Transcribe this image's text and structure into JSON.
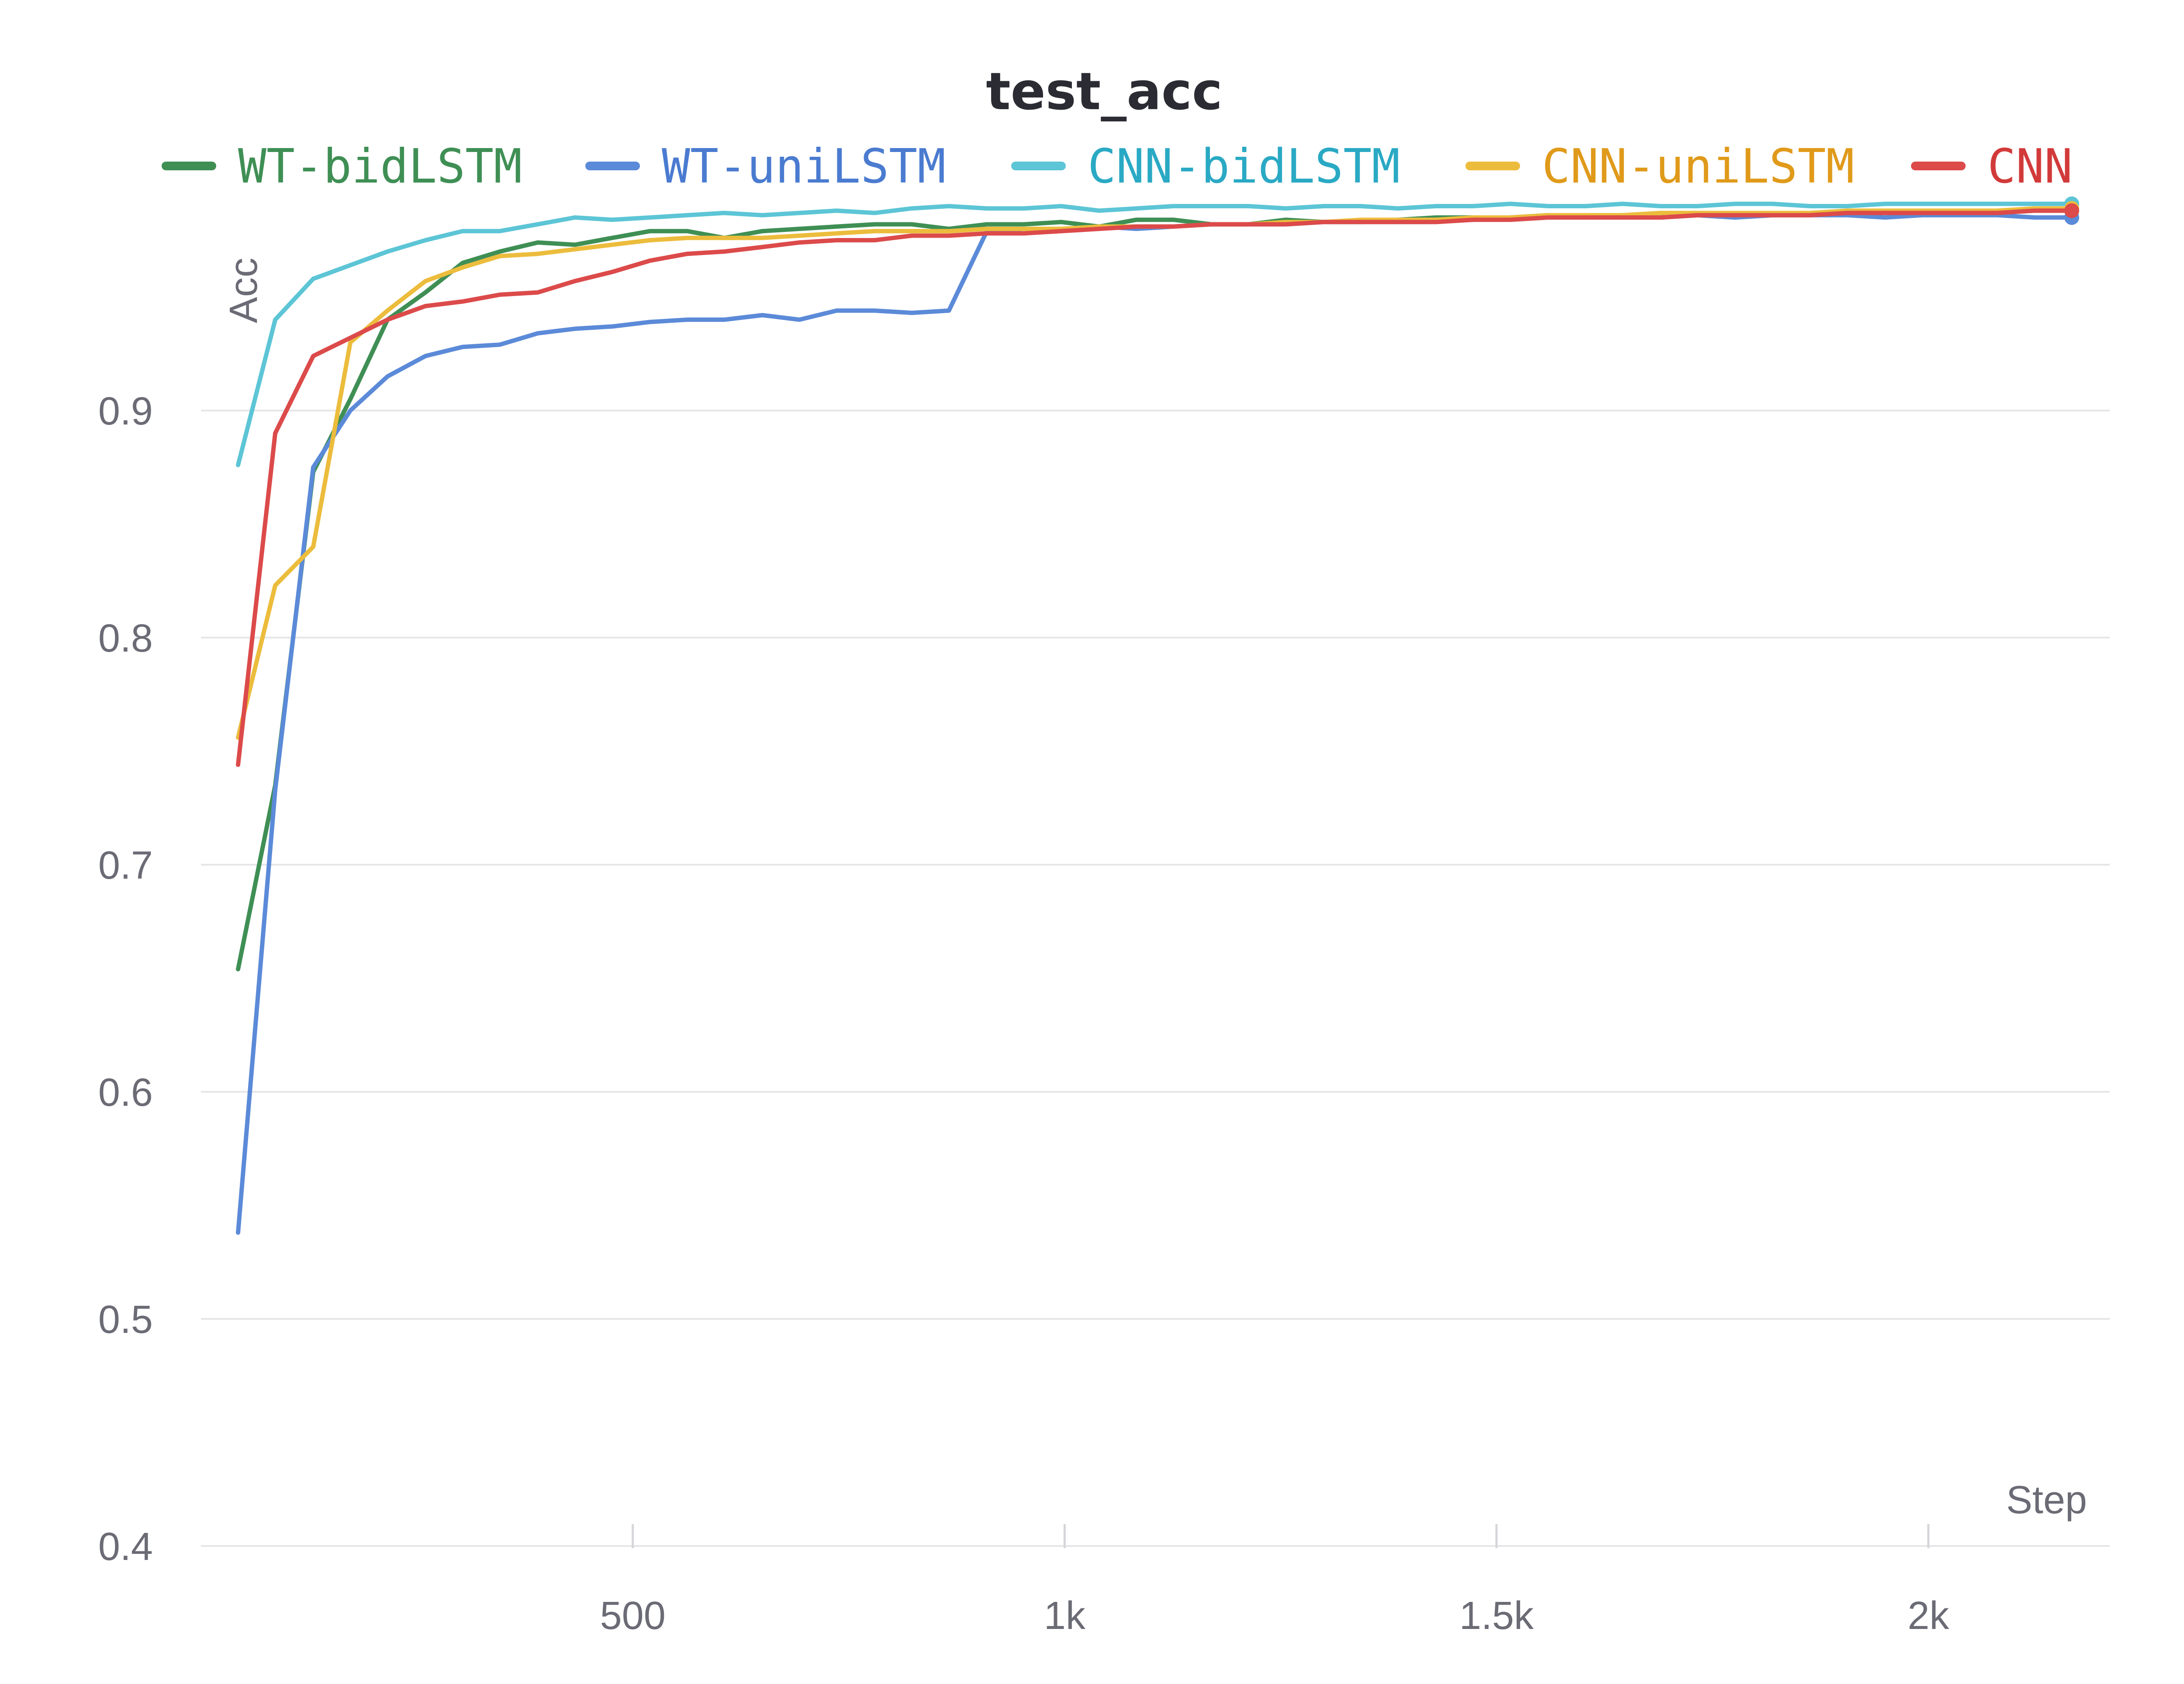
{
  "chart_data": {
    "type": "line",
    "title": "test_acc",
    "xlabel": "Step",
    "ylabel": "Acc",
    "xlim": [
      0,
      2210
    ],
    "ylim": [
      0.4,
      1.0
    ],
    "grid": true,
    "legend_position": "top",
    "yticks": [
      {
        "value": 0.4,
        "label": "0.4"
      },
      {
        "value": 0.5,
        "label": "0.5"
      },
      {
        "value": 0.6,
        "label": "0.6"
      },
      {
        "value": 0.7,
        "label": "0.7"
      },
      {
        "value": 0.8,
        "label": "0.8"
      },
      {
        "value": 0.9,
        "label": "0.9"
      }
    ],
    "xticks": [
      {
        "value": 500,
        "label": "500"
      },
      {
        "value": 1000,
        "label": "1k"
      },
      {
        "value": 1500,
        "label": "1.5k"
      },
      {
        "value": 2000,
        "label": "2k"
      }
    ],
    "series": [
      {
        "name": "WT-bidLSTM",
        "color": "#3f8f55",
        "text_color": "#3f8f55",
        "x": [
          43,
          86,
          130,
          173,
          216,
          260,
          303,
          346,
          390,
          433,
          476,
          520,
          563,
          606,
          650,
          693,
          736,
          780,
          823,
          866,
          910,
          953,
          996,
          1040,
          1083,
          1126,
          1170,
          1213,
          1256,
          1300,
          1343,
          1386,
          1430,
          1473,
          1516,
          1560,
          1603,
          1646,
          1690,
          1733,
          1776,
          1820,
          1863,
          1906,
          1950,
          1993,
          2036,
          2080,
          2123,
          2166
        ],
        "y": [
          0.654,
          0.735,
          0.873,
          0.905,
          0.94,
          0.952,
          0.965,
          0.97,
          0.974,
          0.973,
          0.976,
          0.979,
          0.979,
          0.976,
          0.979,
          0.98,
          0.981,
          0.982,
          0.982,
          0.98,
          0.982,
          0.982,
          0.983,
          0.981,
          0.984,
          0.984,
          0.982,
          0.982,
          0.984,
          0.983,
          0.983,
          0.984,
          0.985,
          0.985,
          0.985,
          0.986,
          0.985,
          0.986,
          0.985,
          0.986,
          0.985,
          0.986,
          0.986,
          0.987,
          0.987,
          0.987,
          0.987,
          0.988,
          0.988,
          0.988
        ]
      },
      {
        "name": "WT-uniLSTM",
        "color": "#5b8ad8",
        "text_color": "#4a7bd0",
        "x": [
          43,
          86,
          130,
          173,
          216,
          260,
          303,
          346,
          390,
          433,
          476,
          520,
          563,
          606,
          650,
          693,
          736,
          780,
          823,
          866,
          910,
          953,
          996,
          1040,
          1083,
          1126,
          1170,
          1213,
          1256,
          1300,
          1343,
          1386,
          1430,
          1473,
          1516,
          1560,
          1603,
          1646,
          1690,
          1733,
          1776,
          1820,
          1863,
          1906,
          1950,
          1993,
          2036,
          2080,
          2123,
          2166
        ],
        "y": [
          0.538,
          0.733,
          0.875,
          0.9,
          0.915,
          0.924,
          0.928,
          0.929,
          0.934,
          0.936,
          0.937,
          0.939,
          0.94,
          0.94,
          0.942,
          0.94,
          0.944,
          0.944,
          0.943,
          0.944,
          0.979,
          0.98,
          0.979,
          0.981,
          0.98,
          0.981,
          0.982,
          0.982,
          0.982,
          0.983,
          0.983,
          0.984,
          0.984,
          0.984,
          0.985,
          0.985,
          0.985,
          0.985,
          0.985,
          0.986,
          0.985,
          0.986,
          0.986,
          0.986,
          0.985,
          0.986,
          0.986,
          0.986,
          0.985,
          0.985
        ]
      },
      {
        "name": "CNN-bidLSTM",
        "color": "#5cc5d6",
        "text_color": "#2aa9c4",
        "x": [
          43,
          86,
          130,
          173,
          216,
          260,
          303,
          346,
          390,
          433,
          476,
          520,
          563,
          606,
          650,
          693,
          736,
          780,
          823,
          866,
          910,
          953,
          996,
          1040,
          1083,
          1126,
          1170,
          1213,
          1256,
          1300,
          1343,
          1386,
          1430,
          1473,
          1516,
          1560,
          1603,
          1646,
          1690,
          1733,
          1776,
          1820,
          1863,
          1906,
          1950,
          1993,
          2036,
          2080,
          2123,
          2166
        ],
        "y": [
          0.876,
          0.94,
          0.958,
          0.964,
          0.97,
          0.975,
          0.979,
          0.979,
          0.982,
          0.985,
          0.984,
          0.985,
          0.986,
          0.987,
          0.986,
          0.987,
          0.988,
          0.987,
          0.989,
          0.99,
          0.989,
          0.989,
          0.99,
          0.988,
          0.989,
          0.99,
          0.99,
          0.99,
          0.989,
          0.99,
          0.99,
          0.989,
          0.99,
          0.99,
          0.991,
          0.99,
          0.99,
          0.991,
          0.99,
          0.99,
          0.991,
          0.991,
          0.99,
          0.99,
          0.991,
          0.991,
          0.991,
          0.991,
          0.991,
          0.991
        ]
      },
      {
        "name": "CNN-uniLSTM",
        "color": "#ecbc3c",
        "text_color": "#e09a1a",
        "x": [
          43,
          86,
          130,
          173,
          216,
          260,
          303,
          346,
          390,
          433,
          476,
          520,
          563,
          606,
          650,
          693,
          736,
          780,
          823,
          866,
          910,
          953,
          996,
          1040,
          1083,
          1126,
          1170,
          1213,
          1256,
          1300,
          1343,
          1386,
          1430,
          1473,
          1516,
          1560,
          1603,
          1646,
          1690,
          1733,
          1776,
          1820,
          1863,
          1906,
          1950,
          1993,
          2036,
          2080,
          2123,
          2166
        ],
        "y": [
          0.756,
          0.823,
          0.84,
          0.93,
          0.944,
          0.957,
          0.963,
          0.968,
          0.969,
          0.971,
          0.973,
          0.975,
          0.976,
          0.976,
          0.976,
          0.977,
          0.978,
          0.979,
          0.979,
          0.979,
          0.98,
          0.98,
          0.98,
          0.981,
          0.981,
          0.981,
          0.982,
          0.982,
          0.983,
          0.983,
          0.984,
          0.984,
          0.984,
          0.985,
          0.985,
          0.986,
          0.986,
          0.986,
          0.987,
          0.987,
          0.987,
          0.987,
          0.987,
          0.988,
          0.988,
          0.988,
          0.988,
          0.988,
          0.989,
          0.989
        ]
      },
      {
        "name": "CNN",
        "color": "#dc4a4a",
        "text_color": "#d23a3a",
        "x": [
          43,
          86,
          130,
          173,
          216,
          260,
          303,
          346,
          390,
          433,
          476,
          520,
          563,
          606,
          650,
          693,
          736,
          780,
          823,
          866,
          910,
          953,
          996,
          1040,
          1083,
          1126,
          1170,
          1213,
          1256,
          1300,
          1343,
          1386,
          1430,
          1473,
          1516,
          1560,
          1603,
          1646,
          1690,
          1733,
          1776,
          1820,
          1863,
          1906,
          1950,
          1993,
          2036,
          2080,
          2123,
          2166
        ],
        "y": [
          0.744,
          0.89,
          0.924,
          0.932,
          0.94,
          0.946,
          0.948,
          0.951,
          0.952,
          0.957,
          0.961,
          0.966,
          0.969,
          0.97,
          0.972,
          0.974,
          0.975,
          0.975,
          0.977,
          0.977,
          0.978,
          0.978,
          0.979,
          0.98,
          0.981,
          0.981,
          0.982,
          0.982,
          0.982,
          0.983,
          0.983,
          0.983,
          0.983,
          0.984,
          0.984,
          0.985,
          0.985,
          0.985,
          0.985,
          0.986,
          0.986,
          0.986,
          0.986,
          0.987,
          0.987,
          0.987,
          0.987,
          0.987,
          0.988,
          0.988
        ]
      }
    ]
  }
}
